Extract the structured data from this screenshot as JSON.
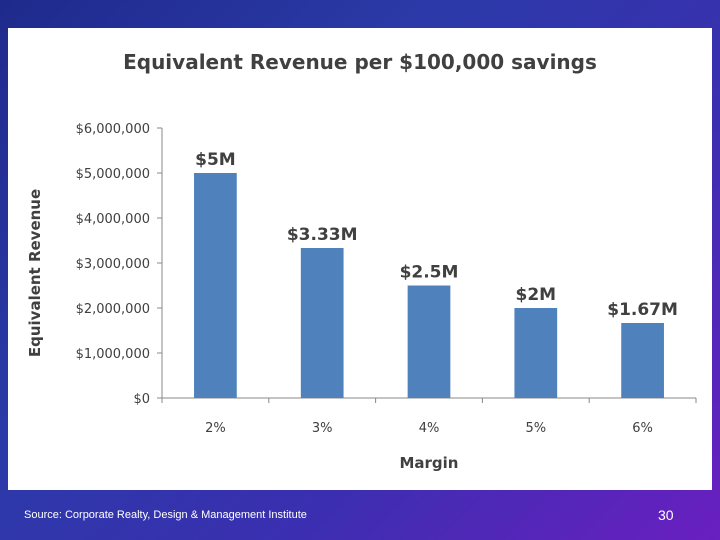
{
  "chart_data": {
    "type": "bar",
    "title": "Equivalent Revenue per $100,000 savings",
    "xlabel": "Margin",
    "ylabel": "Equivalent Revenue",
    "categories": [
      "2%",
      "3%",
      "4%",
      "5%",
      "6%"
    ],
    "values": [
      5000000,
      3333333,
      2500000,
      2000000,
      1666667
    ],
    "data_labels": [
      "$5M",
      "$3.33M",
      "$2.5M",
      "$2M",
      "$1.67M"
    ],
    "ylim": [
      0,
      6000000
    ],
    "yticks": [
      {
        "value": 0,
        "label": "$0"
      },
      {
        "value": 1000000,
        "label": "$1,000,000"
      },
      {
        "value": 2000000,
        "label": "$2,000,000"
      },
      {
        "value": 3000000,
        "label": "$3,000,000"
      },
      {
        "value": 4000000,
        "label": "$4,000,000"
      },
      {
        "value": 5000000,
        "label": "$5,000,000"
      },
      {
        "value": 6000000,
        "label": "$6,000,000"
      }
    ],
    "grid": false,
    "bar_color": "#4f81bd"
  },
  "footer": {
    "source": "Source: Corporate Realty, Design & Management Institute",
    "slide_number": "30"
  }
}
